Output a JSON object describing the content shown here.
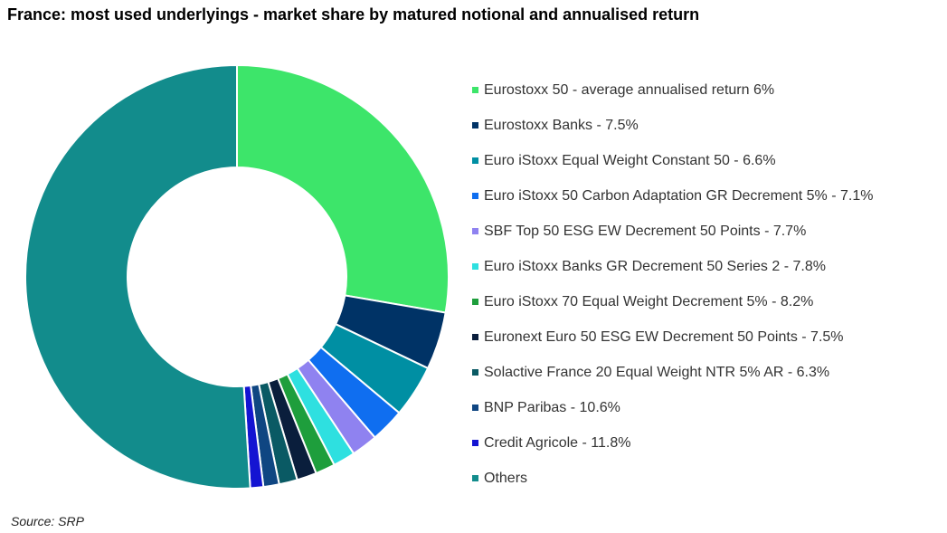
{
  "chart_data": {
    "type": "pie",
    "subtype": "donut",
    "title": "France: most used underlyings - market share by matured notional and annualised return",
    "series": [
      {
        "label": "Eurostoxx 50 - average annualised return 6%",
        "value": 27.7,
        "color": "#3DE56A"
      },
      {
        "label": "Eurostoxx Banks - 7.5%",
        "value": 4.4,
        "color": "#003366"
      },
      {
        "label": "Euro iStoxx Equal Weight Constant 50 - 6.6%",
        "value": 4.0,
        "color": "#008FA3"
      },
      {
        "label": "Euro iStoxx 50 Carbon Adaptation GR Decrement 5% - 7.1%",
        "value": 2.6,
        "color": "#0F6EF0"
      },
      {
        "label": "SBF Top 50 ESG EW Decrement 50 Points - 7.7%",
        "value": 2.0,
        "color": "#8F82F0"
      },
      {
        "label": "Euro iStoxx Banks GR Decrement 50 Series 2 - 7.8%",
        "value": 1.7,
        "color": "#2EE0E0"
      },
      {
        "label": "Euro iStoxx 70 Equal Weight Decrement 5% - 8.2%",
        "value": 1.5,
        "color": "#1E9E3C"
      },
      {
        "label": "Euronext Euro 50 ESG EW Decrement 50 Points - 7.5%",
        "value": 1.5,
        "color": "#0A1E3C"
      },
      {
        "label": "Solactive France 20 Equal Weight NTR 5% AR - 6.3%",
        "value": 1.4,
        "color": "#0A5A64"
      },
      {
        "label": "BNP Paribas - 10.6%",
        "value": 1.2,
        "color": "#0F4682"
      },
      {
        "label": "Credit Agricole - 11.8%",
        "value": 1.0,
        "color": "#1414D2"
      },
      {
        "label": "Others",
        "value": 51.0,
        "color": "#128C8C"
      }
    ],
    "legend_position": "right"
  },
  "source": "Source: SRP"
}
